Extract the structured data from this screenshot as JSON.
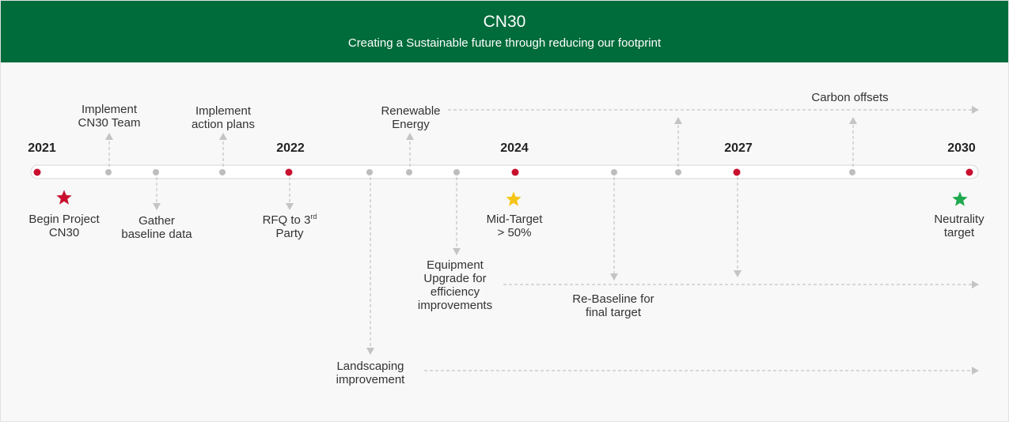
{
  "header": {
    "title": "CN30",
    "subtitle": "Creating a Sustainable future through reducing our footprint"
  },
  "years": {
    "y2021": "2021",
    "y2022": "2022",
    "y2024": "2024",
    "y2027": "2027",
    "y2030": "2030"
  },
  "milestones": {
    "implement_team": [
      "Implement",
      "CN30 Team"
    ],
    "implement_plans": [
      "Implement",
      "action plans"
    ],
    "renewable": [
      "Renewable",
      "Energy"
    ],
    "carbon_offsets": "Carbon offsets",
    "begin_project": [
      "Begin Project",
      "CN30"
    ],
    "gather_baseline": [
      "Gather",
      "baseline data"
    ],
    "rfq": {
      "line1_prefix": "RFQ to 3",
      "line1_sup": "rd",
      "line2": "Party"
    },
    "mid_target": [
      "Mid-Target",
      "> 50%"
    ],
    "equipment": [
      "Equipment",
      "Upgrade for",
      "efficiency",
      "improvements"
    ],
    "rebaseline": [
      "Re-Baseline for",
      "final target"
    ],
    "landscaping": [
      "Landscaping",
      "improvement"
    ],
    "neutrality": [
      "Neutrality",
      "target"
    ]
  },
  "colors": {
    "header_bg": "#006b3b",
    "year_dot": "#c8102e",
    "minor_dot": "#bdbdbd",
    "connector": "#c4c4c4",
    "star_begin": "#c8102e",
    "star_mid": "#f5c518",
    "star_end": "#1fa84e"
  },
  "icons": {
    "begin": "star-icon",
    "mid": "star-icon",
    "end": "star-icon"
  }
}
